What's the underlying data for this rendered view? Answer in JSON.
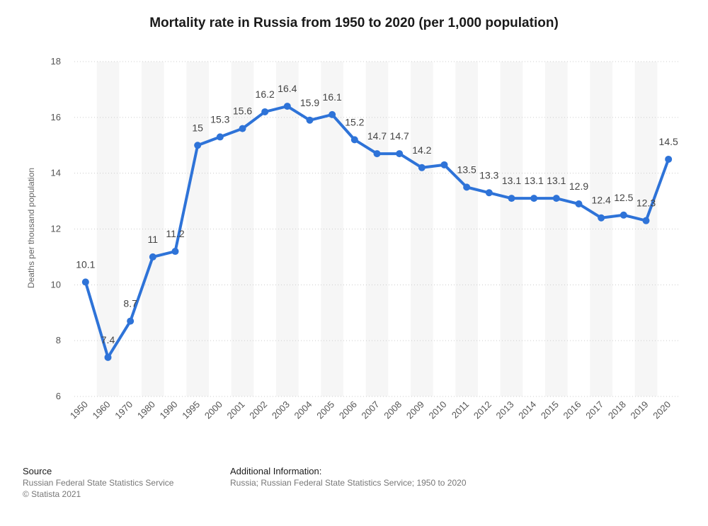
{
  "title": "Mortality rate in Russia from 1950 to 2020 (per 1,000 population)",
  "footer": {
    "source_heading": "Source",
    "source_line1": "Russian Federal State Statistics Service",
    "source_line2": "© Statista 2021",
    "info_heading": "Additional Information:",
    "info_line1": "Russia; Russian Federal State Statistics Service; 1950 to 2020"
  },
  "chart_data": {
    "type": "line",
    "title": "Mortality rate in Russia from 1950 to 2020 (per 1,000 population)",
    "xlabel": "",
    "ylabel": "Deaths per thousand population",
    "ylim": [
      6,
      18
    ],
    "yticks": [
      6,
      8,
      10,
      12,
      14,
      16,
      18
    ],
    "grid": true,
    "line_color": "#2e73d8",
    "categories": [
      "1950",
      "1960",
      "1970",
      "1980",
      "1990",
      "1995",
      "2000",
      "2001",
      "2002",
      "2003",
      "2004",
      "2005",
      "2006",
      "2007",
      "2008",
      "2009",
      "2010",
      "2011",
      "2012",
      "2013",
      "2014",
      "2015",
      "2016",
      "2017",
      "2018",
      "2019",
      "2020"
    ],
    "series": [
      {
        "values": [
          10.1,
          7.4,
          8.7,
          11,
          11.2,
          15,
          15.3,
          15.6,
          16.2,
          16.4,
          15.9,
          16.1,
          15.2,
          14.7,
          14.7,
          14.2,
          14.3,
          13.5,
          13.3,
          13.1,
          13.1,
          13.1,
          12.9,
          12.4,
          12.5,
          12.3,
          14.5
        ],
        "labels": [
          "10.1",
          "7.4",
          "8.7",
          "11",
          "11.2",
          "15",
          "15.3",
          "15.6",
          "16.2",
          "16.4",
          "15.9",
          "16.1",
          "15.2",
          "14.7",
          "14.7",
          "14.2",
          "",
          "13.5",
          "13.3",
          "13.1",
          "13.1",
          "13.1",
          "12.9",
          "12.4",
          "12.5",
          "12.3",
          "14.5"
        ]
      }
    ]
  }
}
